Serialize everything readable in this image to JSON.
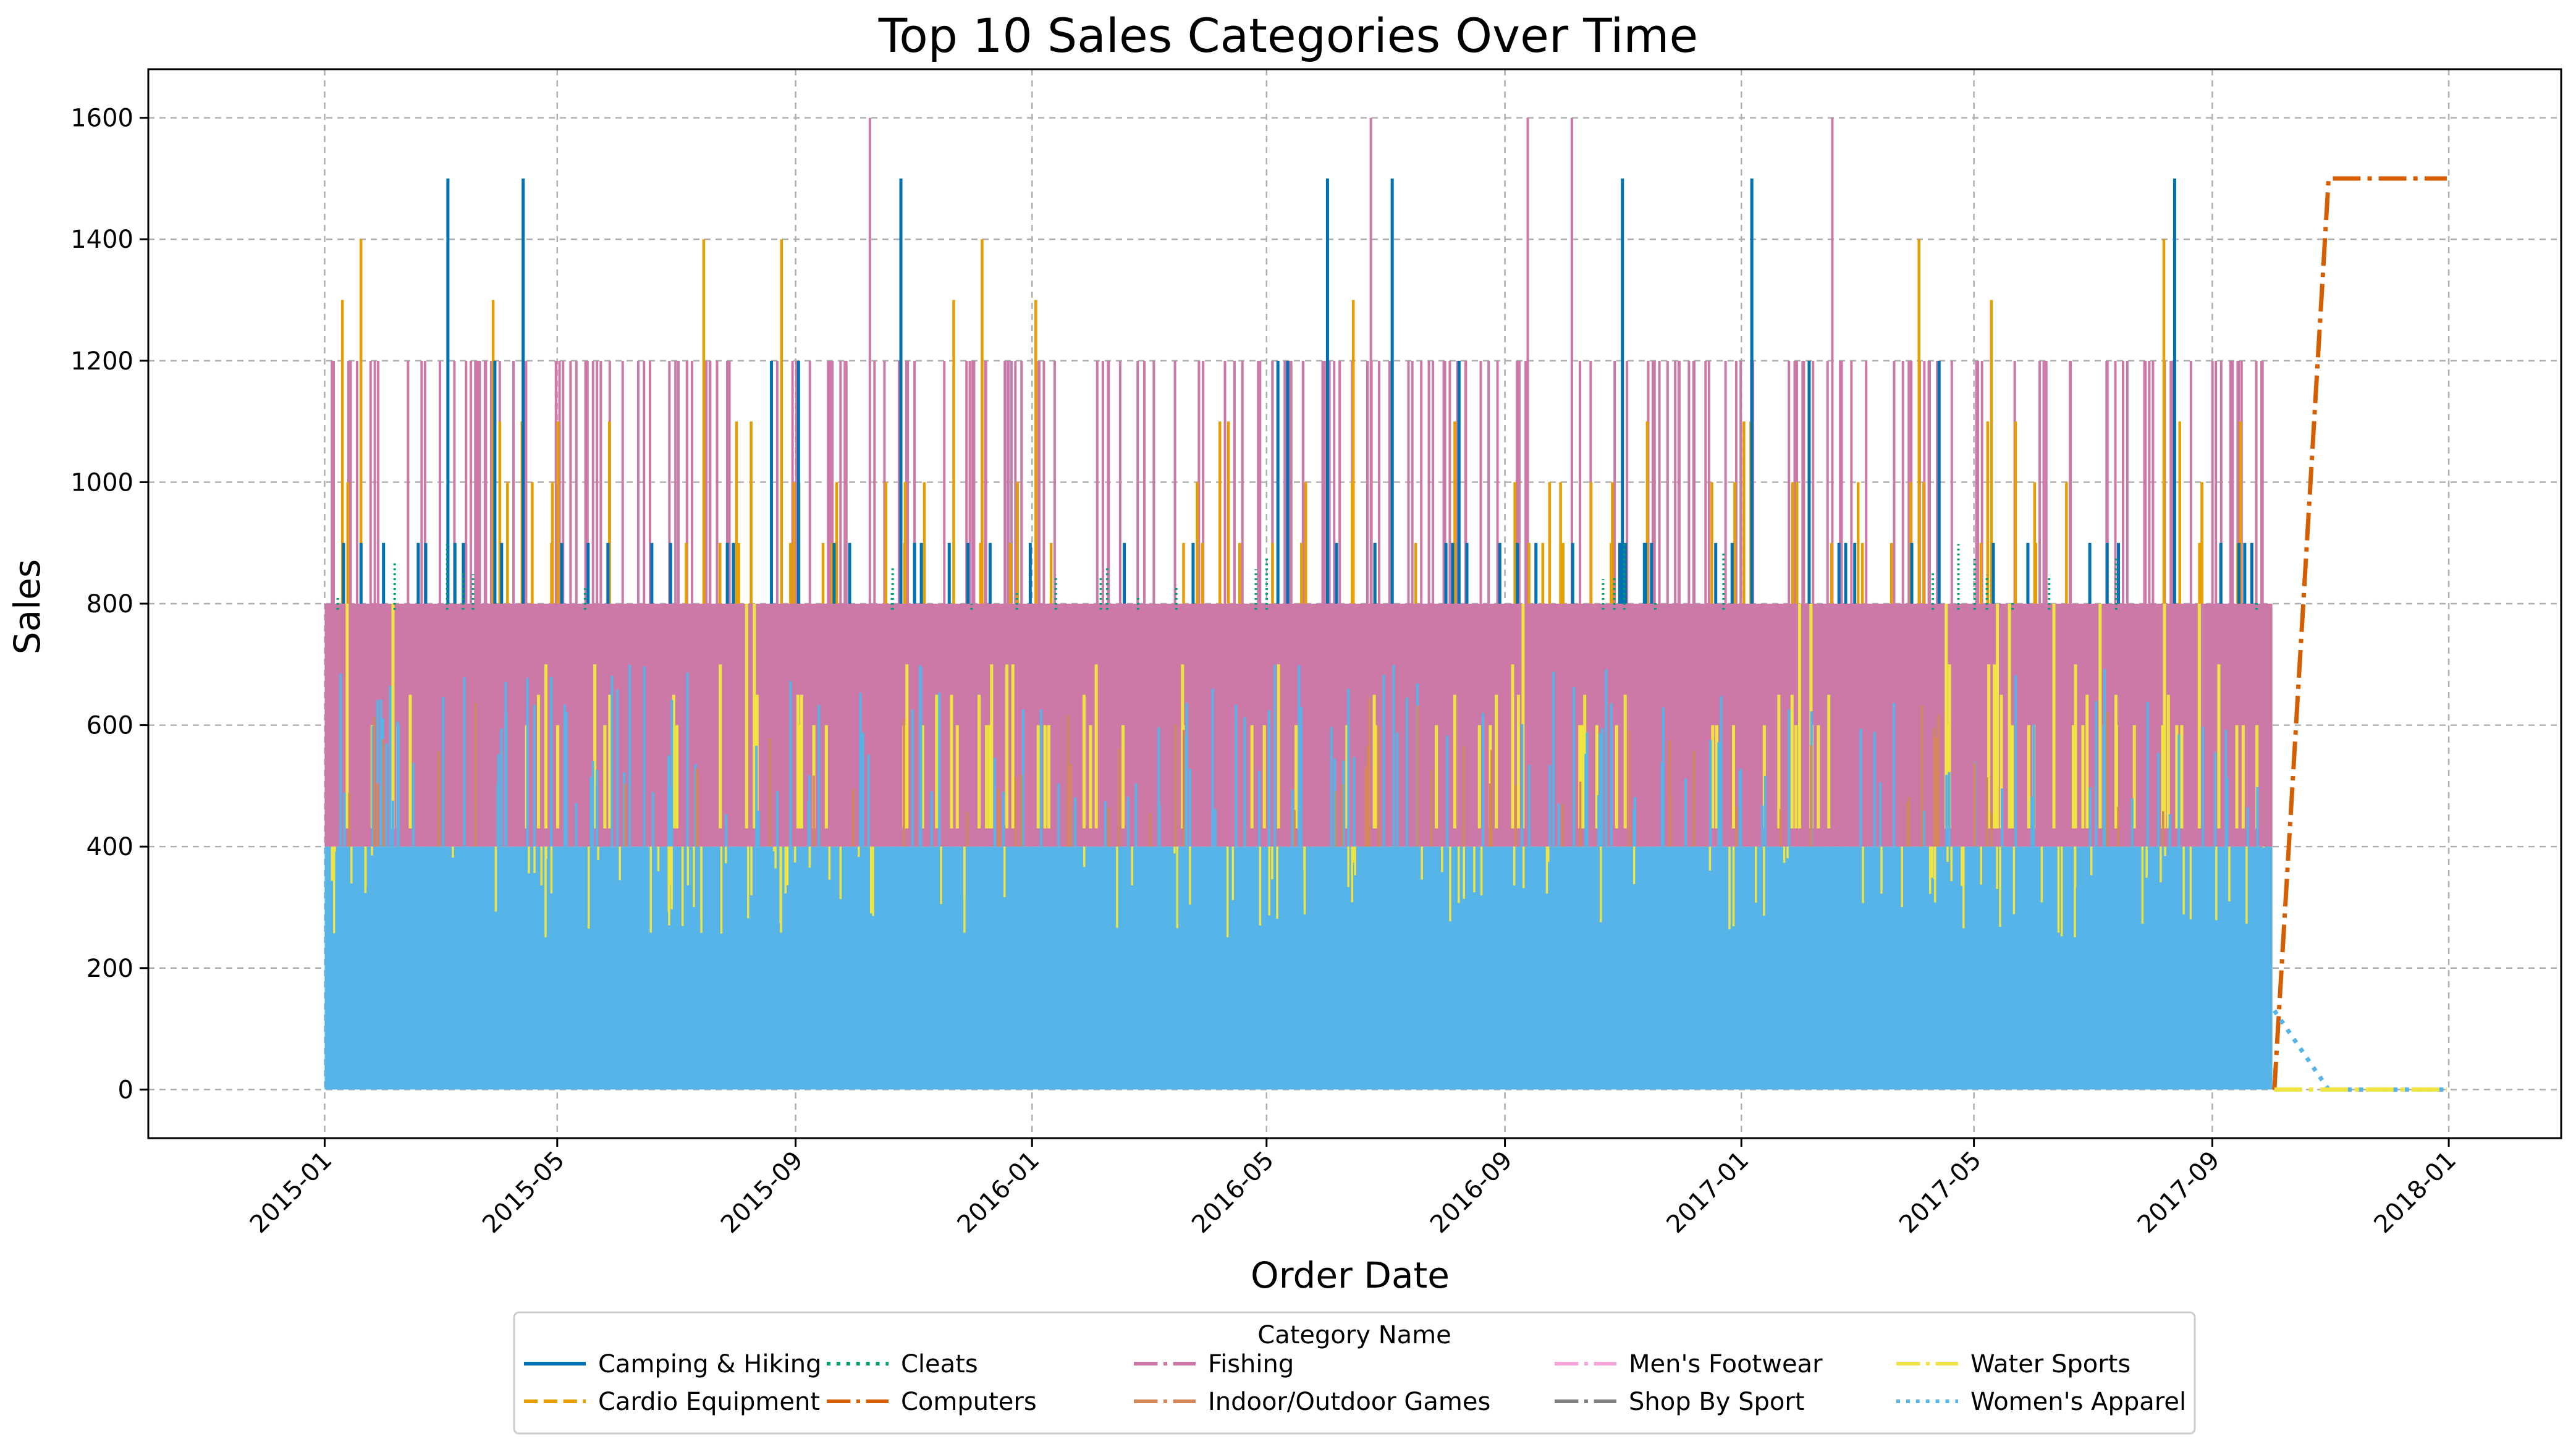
{
  "chart_data": {
    "type": "line",
    "title": "Top 10 Sales Categories Over Time",
    "xlabel": "Order Date",
    "ylabel": "Sales",
    "x_axis_type": "date",
    "xlim": [
      "2014-10-02",
      "2018-02-28"
    ],
    "ylim": [
      -80,
      1680
    ],
    "x_ticks": [
      "2015-01",
      "2015-05",
      "2015-09",
      "2016-01",
      "2016-05",
      "2016-09",
      "2017-01",
      "2017-05",
      "2017-09",
      "2018-01"
    ],
    "y_ticks": [
      0,
      200,
      400,
      600,
      800,
      1000,
      1200,
      1400,
      1600
    ],
    "grid": true,
    "grid_style": "dashed",
    "legend": {
      "title": "Category Name",
      "placement": "bottom-center, outside plot",
      "columns": 5
    },
    "series": [
      {
        "name": "Camping & Hiking",
        "color": "#0072B2",
        "dash": "solid"
      },
      {
        "name": "Cardio Equipment",
        "color": "#E69F00",
        "dash": "dashed"
      },
      {
        "name": "Cleats",
        "color": "#009E73",
        "dash": "dotted"
      },
      {
        "name": "Computers",
        "color": "#D55E00",
        "dash": "dashdot",
        "points": [
          [
            "2017-10-03",
            0
          ],
          [
            "2017-10-31",
            1500
          ],
          [
            "2017-12-31",
            1500
          ]
        ]
      },
      {
        "name": "Fishing",
        "color": "#CC79A7",
        "dash": "dashdot"
      },
      {
        "name": "Indoor/Outdoor Games",
        "color": "#D4885A",
        "dash": "dashdot"
      },
      {
        "name": "Men's Footwear",
        "color": "#F5A6D8",
        "dash": "dashdot"
      },
      {
        "name": "Shop By Sport",
        "color": "#808080",
        "dash": "dashdot"
      },
      {
        "name": "Water Sports",
        "color": "#F0E442",
        "dash": "dashdot"
      },
      {
        "name": "Women's Apparel",
        "color": "#56B4E9",
        "dash": "dotted",
        "points": [
          [
            "2017-10-03",
            130
          ],
          [
            "2017-10-31",
            0
          ],
          [
            "2017-12-31",
            0
          ]
        ]
      }
    ],
    "dense_bands": [
      {
        "series": "Women's Apparel",
        "from": "2015-01-01",
        "to": "2017-10-02",
        "low": 0,
        "high": 400
      },
      {
        "series": "Water Sports",
        "from": "2015-01-01",
        "to": "2017-10-02",
        "low": 400,
        "high": 600
      },
      {
        "series": "Fishing",
        "from": "2015-01-01",
        "to": "2017-10-02",
        "low": 400,
        "high": 800
      }
    ],
    "spike_levels": {
      "Fishing": [
        1200,
        1600
      ],
      "Cardio Equipment": [
        900,
        1000,
        1100,
        1300,
        1400
      ],
      "Camping & Hiking": [
        900,
        1200,
        1500
      ]
    },
    "tail_zero": {
      "from": "2017-10-03",
      "to": "2017-12-31",
      "value": 0
    }
  }
}
